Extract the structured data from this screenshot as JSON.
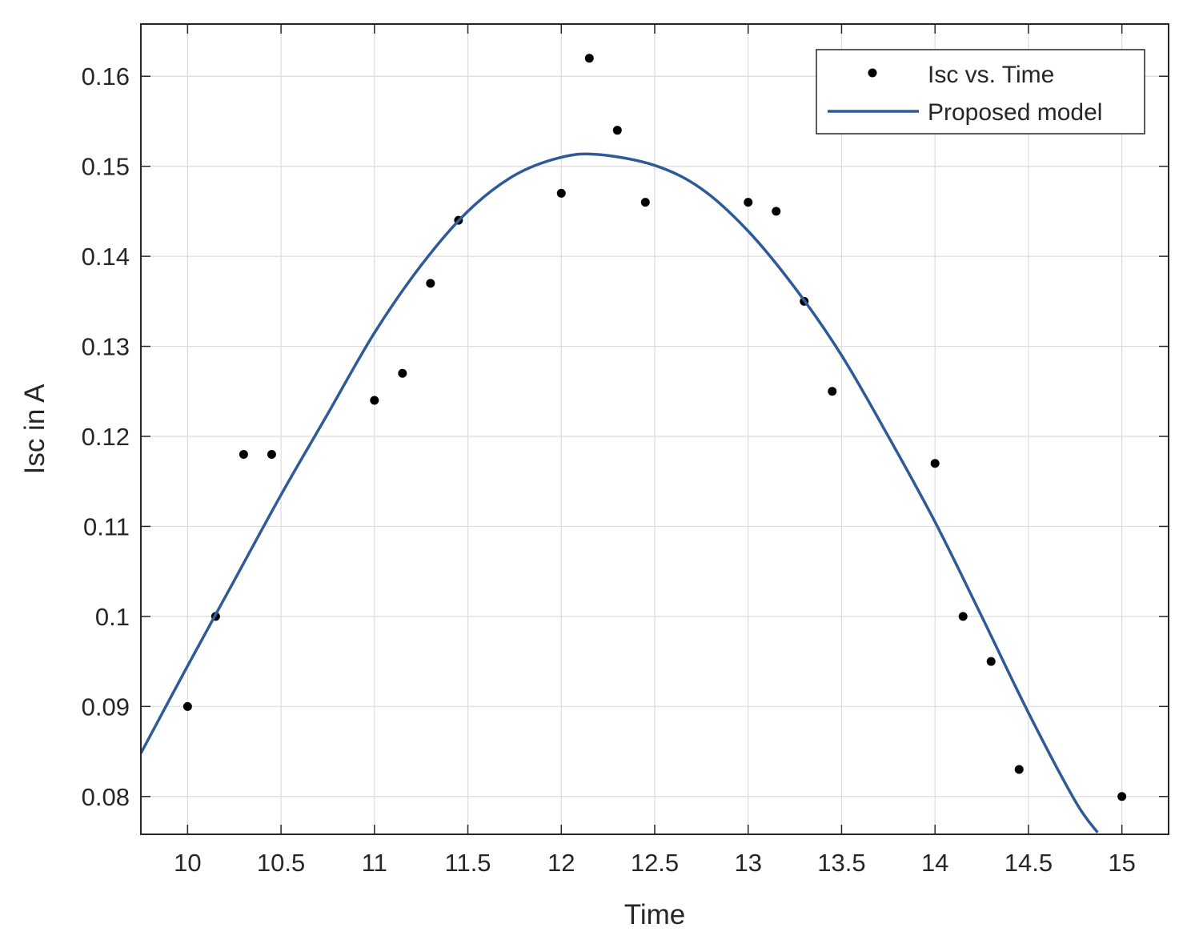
{
  "chart_data": {
    "type": "scatter",
    "title": "",
    "xlabel": "Time",
    "ylabel": "Isc in A",
    "xlim": [
      9.75,
      15.25
    ],
    "ylim": [
      0.0758,
      0.1658
    ],
    "grid": true,
    "legend_position": "top-right",
    "x_ticks": [
      {
        "value": 10,
        "label": "10"
      },
      {
        "value": 10.5,
        "label": "10.5"
      },
      {
        "value": 11,
        "label": "11"
      },
      {
        "value": 11.5,
        "label": "11.5"
      },
      {
        "value": 12,
        "label": "12"
      },
      {
        "value": 12.5,
        "label": "12.5"
      },
      {
        "value": 13,
        "label": "13"
      },
      {
        "value": 13.5,
        "label": "13.5"
      },
      {
        "value": 14,
        "label": "14"
      },
      {
        "value": 14.5,
        "label": "14.5"
      },
      {
        "value": 15,
        "label": "15"
      }
    ],
    "y_ticks": [
      {
        "value": 0.08,
        "label": "0.08"
      },
      {
        "value": 0.09,
        "label": "0.09"
      },
      {
        "value": 0.1,
        "label": "0.1"
      },
      {
        "value": 0.11,
        "label": "0.11"
      },
      {
        "value": 0.12,
        "label": "0.12"
      },
      {
        "value": 0.13,
        "label": "0.13"
      },
      {
        "value": 0.14,
        "label": "0.14"
      },
      {
        "value": 0.15,
        "label": "0.15"
      },
      {
        "value": 0.16,
        "label": "0.16"
      }
    ],
    "series": [
      {
        "name": "Isc vs. Time",
        "kind": "scatter",
        "color": "#000000",
        "x": [
          10,
          10.15,
          10.3,
          10.45,
          11,
          11.15,
          11.3,
          11.45,
          12,
          12.15,
          12.3,
          12.45,
          13,
          13.15,
          13.3,
          13.45,
          14,
          14.15,
          14.3,
          14.45,
          15
        ],
        "y": [
          0.09,
          0.1,
          0.118,
          0.118,
          0.124,
          0.127,
          0.137,
          0.144,
          0.147,
          0.162,
          0.154,
          0.146,
          0.146,
          0.145,
          0.135,
          0.125,
          0.117,
          0.1,
          0.095,
          0.083,
          0.08
        ]
      },
      {
        "name": "Proposed model",
        "kind": "line",
        "color": "#2e5b97",
        "x": [
          9.75,
          10.0,
          10.25,
          10.5,
          10.75,
          11.0,
          11.25,
          11.5,
          11.75,
          12.0,
          12.2,
          12.5,
          12.75,
          13.0,
          13.25,
          13.5,
          13.75,
          14.0,
          14.25,
          14.5,
          14.75,
          14.87
        ],
        "y": [
          0.0848,
          0.0945,
          0.104,
          0.1135,
          0.1225,
          0.1315,
          0.139,
          0.145,
          0.149,
          0.151,
          0.1513,
          0.1501,
          0.1475,
          0.1428,
          0.1365,
          0.129,
          0.12,
          0.1105,
          0.1,
          0.0893,
          0.0795,
          0.076
        ]
      }
    ]
  }
}
